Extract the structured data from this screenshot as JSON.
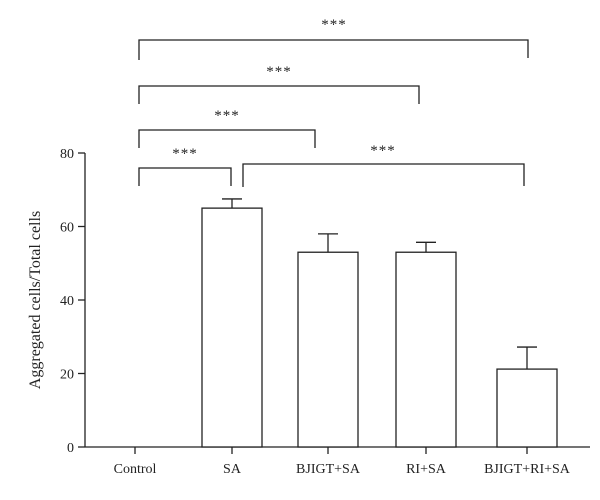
{
  "chart_data": {
    "type": "bar",
    "categories": [
      "Control",
      "SA",
      "BJIGT+SA",
      "RI+SA",
      "BJIGT+RI+SA"
    ],
    "series": [
      {
        "values": [
          0,
          65,
          53,
          53,
          21.2
        ],
        "errors": [
          0,
          2.5,
          5,
          2.7,
          6
        ]
      }
    ],
    "title": "",
    "xlabel": "",
    "ylabel": "Aggregated cells/Total cells",
    "ylim": [
      0,
      80
    ],
    "yticks": [
      0,
      20,
      40,
      60,
      80
    ],
    "grid": false,
    "legend": "none",
    "bar_fill": "#ffffff",
    "line_color": "#222222",
    "significance": [
      {
        "from": 0,
        "to": 4,
        "label": "***"
      },
      {
        "from": 0,
        "to": 3,
        "label": "***"
      },
      {
        "from": 0,
        "to": 2,
        "label": "***"
      },
      {
        "from": 0,
        "to": 1,
        "label": "***"
      },
      {
        "from": 1,
        "to": 4,
        "label": "***"
      }
    ]
  }
}
